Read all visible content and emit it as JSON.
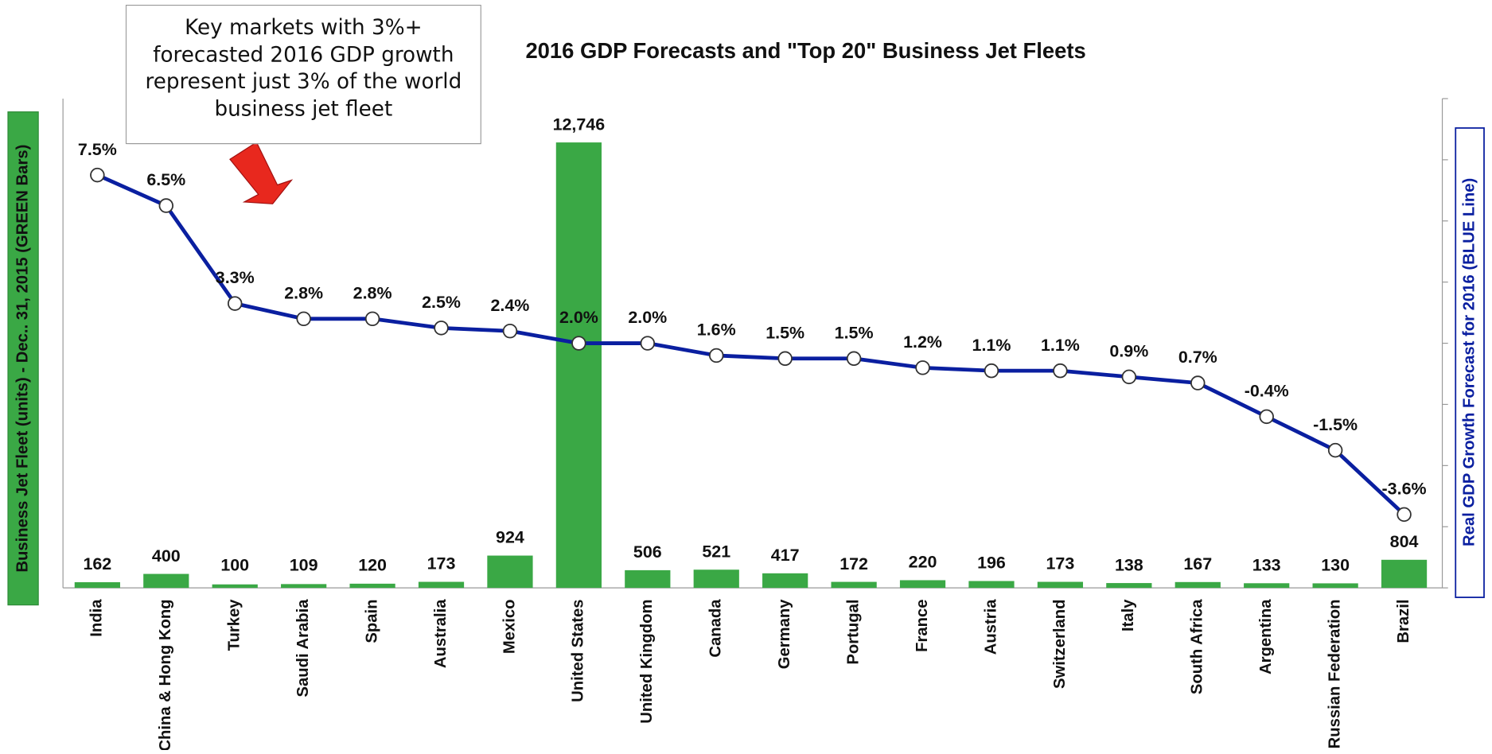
{
  "chart_data": {
    "type": "bar_line",
    "title": "2016 GDP Forecasts and \"Top 20\" Business Jet Fleets",
    "y_label": "Business Jet Fleet (units) - Dec.. 31, 2015 (GREEN Bars)",
    "y2_label": "Real GDP Growth Forecast for 2016 (BLUE Line)",
    "annotation": "Key markets with 3%+ forecasted 2016 GDP growth represent just 3% of the world business jet fleet",
    "categories": [
      "India",
      "China & Hong Kong",
      "Turkey",
      "Saudi Arabia",
      "Spain",
      "Australia",
      "Mexico",
      "United States",
      "United Kingdom",
      "Canada",
      "Germany",
      "Portugal",
      "France",
      "Austria",
      "Switzerland",
      "Italy",
      "South Africa",
      "Argentina",
      "Russian Federation",
      "Brazil"
    ],
    "series": [
      {
        "name": "Business Jet Fleet",
        "type": "bar",
        "color": "#3aa845",
        "values": [
          162,
          400,
          100,
          109,
          120,
          173,
          924,
          12746,
          506,
          521,
          417,
          172,
          220,
          196,
          173,
          138,
          167,
          133,
          130,
          804
        ],
        "value_labels": [
          "162",
          "400",
          "100",
          "109",
          "120",
          "173",
          "924",
          "12,746",
          "506",
          "521",
          "417",
          "172",
          "220",
          "196",
          "173",
          "138",
          "167",
          "133",
          "130",
          "804"
        ]
      },
      {
        "name": "Real GDP Growth Forecast",
        "type": "line",
        "axis": "y2",
        "color": "#0a1fa0",
        "values": [
          7.5,
          6.5,
          3.3,
          2.8,
          2.8,
          2.5,
          2.4,
          2.0,
          2.0,
          1.6,
          1.5,
          1.5,
          1.2,
          1.1,
          1.1,
          0.9,
          0.7,
          -0.4,
          -1.5,
          -3.6
        ],
        "value_labels": [
          "7.5%",
          "6.5%",
          "3.3%",
          "2.8%",
          "2.8%",
          "2.5%",
          "2.4%",
          "2.0%",
          "2.0%",
          "1.6%",
          "1.5%",
          "1.5%",
          "1.2%",
          "1.1%",
          "1.1%",
          "0.9%",
          "0.7%",
          "-0.4%",
          "-1.5%",
          "-3.6%"
        ]
      }
    ],
    "ylim": [
      0,
      14000
    ],
    "y2lim": [
      -6,
      10
    ],
    "y2ticks": [
      -6,
      -4,
      -2,
      0,
      2,
      4,
      6,
      8,
      10
    ]
  }
}
